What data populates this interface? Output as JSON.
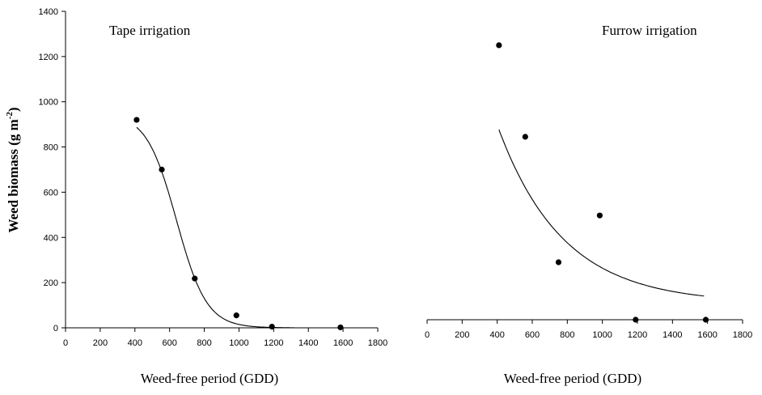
{
  "ylabel": {
    "text": "Weed biomass (g m",
    "sup": "-2",
    "close": ")"
  },
  "chart_data": [
    {
      "type": "scatter",
      "title": "Tape irrigation",
      "xlabel": "Weed-free period (GDD)",
      "ylabel": "Weed biomass (g m-2)",
      "xlim": [
        0,
        1800
      ],
      "ylim": [
        0,
        1400
      ],
      "xticks": [
        0,
        200,
        400,
        600,
        800,
        1000,
        1200,
        1400,
        1600,
        1800
      ],
      "yticks": [
        0,
        200,
        400,
        600,
        800,
        1000,
        1200,
        1400
      ],
      "points": [
        {
          "x": 410,
          "y": 920
        },
        {
          "x": 555,
          "y": 700
        },
        {
          "x": 745,
          "y": 218
        },
        {
          "x": 985,
          "y": 55
        },
        {
          "x": 1190,
          "y": 5
        },
        {
          "x": 1585,
          "y": 2
        }
      ],
      "fit": {
        "type": "logistic",
        "upper": 950,
        "x50": 640,
        "slope": 0.0115,
        "x_range": [
          410,
          1320
        ]
      },
      "grid": false,
      "legend": "none"
    },
    {
      "type": "scatter",
      "title": "Furrow irrigation",
      "xlabel": "Weed-free period (GDD)",
      "xlim": [
        0,
        1800
      ],
      "ylim": [
        0,
        1400
      ],
      "xticks": [
        0,
        200,
        400,
        600,
        800,
        1000,
        1200,
        1400,
        1600,
        1800
      ],
      "points": [
        {
          "x": 410,
          "y": 1250
        },
        {
          "x": 560,
          "y": 845
        },
        {
          "x": 750,
          "y": 290
        },
        {
          "x": 985,
          "y": 497
        },
        {
          "x": 1190,
          "y": 0
        },
        {
          "x": 1590,
          "y": 0
        }
      ],
      "fit": {
        "type": "exponential-decay",
        "a": 2325,
        "b": 0.0027,
        "c": 108,
        "x_range": [
          410,
          1580
        ]
      },
      "grid": false,
      "legend": "none"
    }
  ]
}
